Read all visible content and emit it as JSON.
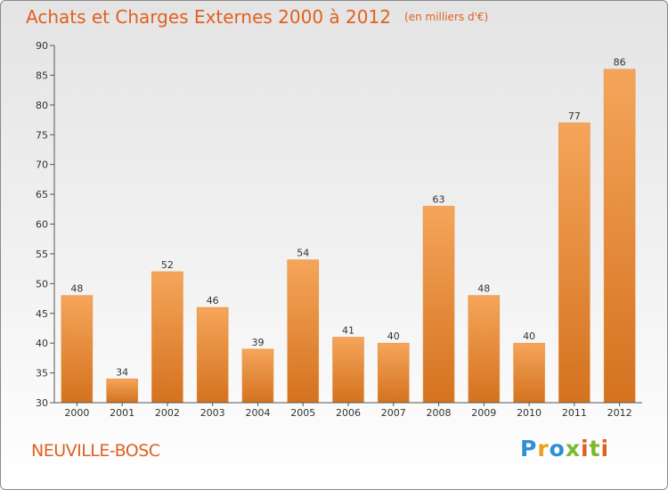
{
  "header": {
    "title": "Achats et Charges Externes 2000 à 2012",
    "unit": "(en milliers d'€)"
  },
  "footer": {
    "place": "NEUVILLE-BOSC",
    "brand": "Proxiti",
    "brand_colors": [
      "#2e8fd6",
      "#e8a21a",
      "#2e8fd6",
      "#7ab82e",
      "#e0601f",
      "#7ab82e",
      "#e0601f"
    ]
  },
  "colors": {
    "bar_top": "#f5a55a",
    "bar_bottom": "#d4721f",
    "axis": "#555555",
    "text": "#333333"
  },
  "chart_data": {
    "type": "bar",
    "categories": [
      "2000",
      "2001",
      "2002",
      "2003",
      "2004",
      "2005",
      "2006",
      "2007",
      "2008",
      "2009",
      "2010",
      "2011",
      "2012"
    ],
    "values": [
      48,
      34,
      52,
      46,
      39,
      54,
      41,
      40,
      63,
      48,
      40,
      77,
      86
    ],
    "ylim": [
      30,
      90
    ],
    "yticks": [
      30,
      35,
      40,
      45,
      50,
      55,
      60,
      65,
      70,
      75,
      80,
      85,
      90
    ],
    "grid": false
  }
}
